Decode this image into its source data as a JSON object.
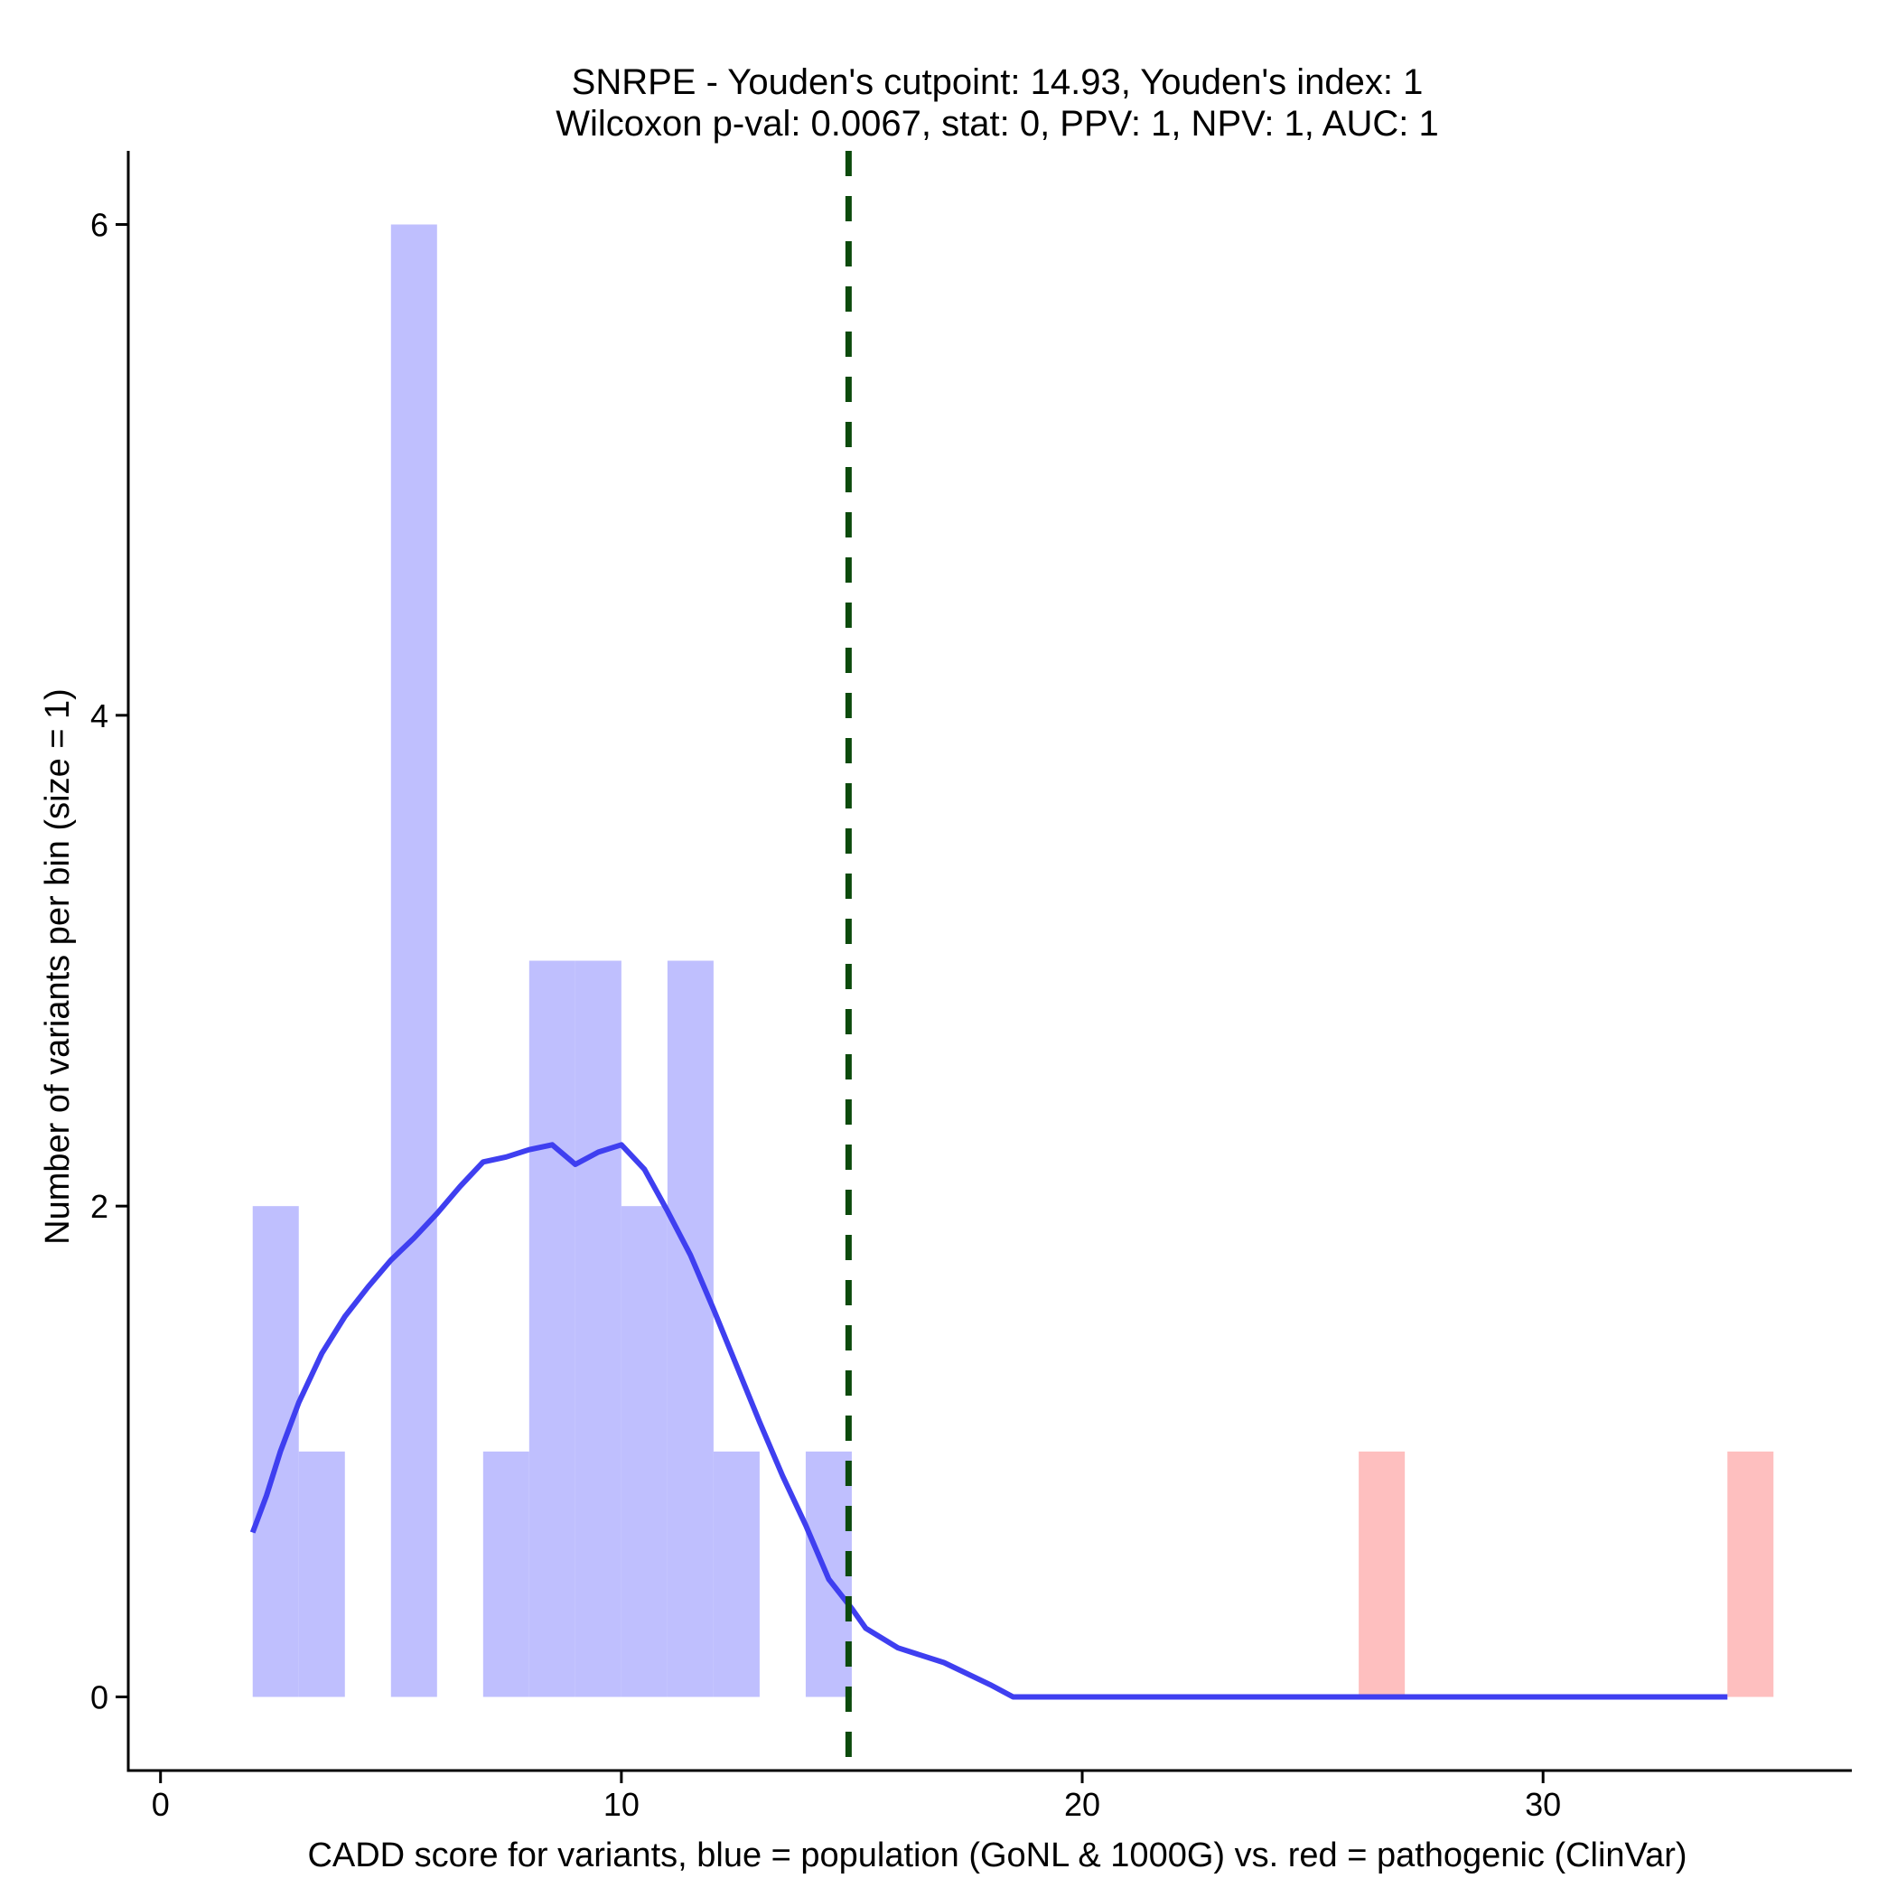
{
  "chart_data": {
    "type": "bar",
    "title_line1": "SNRPE - Youden's cutpoint: 14.93, Youden's index: 1",
    "title_line2": "Wilcoxon p-val: 0.0067, stat: 0, PPV: 1, NPV: 1, AUC: 1",
    "xlabel": "CADD score for variants, blue = population (GoNL & 1000G) vs. red = pathogenic (ClinVar)",
    "ylabel": "Number of variants per bin (size = 1)",
    "xlim": [
      -0.7,
      36.7
    ],
    "ylim": [
      -0.3,
      6.3
    ],
    "x_ticks": [
      0,
      10,
      20,
      30
    ],
    "y_ticks": [
      0,
      2,
      4,
      6
    ],
    "bin_width": 1,
    "series": [
      {
        "color": "#bfbffe",
        "bins": [
          {
            "x0": 2,
            "count": 2
          },
          {
            "x0": 3,
            "count": 1
          },
          {
            "x0": 5,
            "count": 6
          },
          {
            "x0": 7,
            "count": 1
          },
          {
            "x0": 8,
            "count": 3
          },
          {
            "x0": 9,
            "count": 3
          },
          {
            "x0": 10,
            "count": 2
          },
          {
            "x0": 11,
            "count": 3
          },
          {
            "x0": 12,
            "count": 1
          },
          {
            "x0": 14,
            "count": 1
          }
        ]
      },
      {
        "color": "#febfbf",
        "bins": [
          {
            "x0": 26,
            "count": 1
          },
          {
            "x0": 34,
            "count": 1
          }
        ]
      }
    ],
    "density": {
      "color": "#3f3ff0",
      "points": [
        [
          2.0,
          0.67
        ],
        [
          2.3,
          0.82
        ],
        [
          2.6,
          1.0
        ],
        [
          3.0,
          1.2
        ],
        [
          3.5,
          1.4
        ],
        [
          4.0,
          1.55
        ],
        [
          4.5,
          1.67
        ],
        [
          5.0,
          1.78
        ],
        [
          5.5,
          1.87
        ],
        [
          6.0,
          1.97
        ],
        [
          6.5,
          2.08
        ],
        [
          7.0,
          2.18
        ],
        [
          7.5,
          2.2
        ],
        [
          8.0,
          2.23
        ],
        [
          8.5,
          2.25
        ],
        [
          9.0,
          2.17
        ],
        [
          9.5,
          2.22
        ],
        [
          10.0,
          2.25
        ],
        [
          10.5,
          2.15
        ],
        [
          11.0,
          1.98
        ],
        [
          11.5,
          1.8
        ],
        [
          12.0,
          1.58
        ],
        [
          12.5,
          1.35
        ],
        [
          13.0,
          1.12
        ],
        [
          13.5,
          0.9
        ],
        [
          14.0,
          0.7
        ],
        [
          14.5,
          0.48
        ],
        [
          15.0,
          0.36
        ],
        [
          15.3,
          0.28
        ],
        [
          16.0,
          0.2
        ],
        [
          17.0,
          0.14
        ],
        [
          18.0,
          0.05
        ],
        [
          18.5,
          0.0
        ],
        [
          25.0,
          0.0
        ],
        [
          34.0,
          0.0
        ]
      ]
    },
    "cutpoint": {
      "x": 14.93,
      "color": "#0c4a0c"
    }
  }
}
